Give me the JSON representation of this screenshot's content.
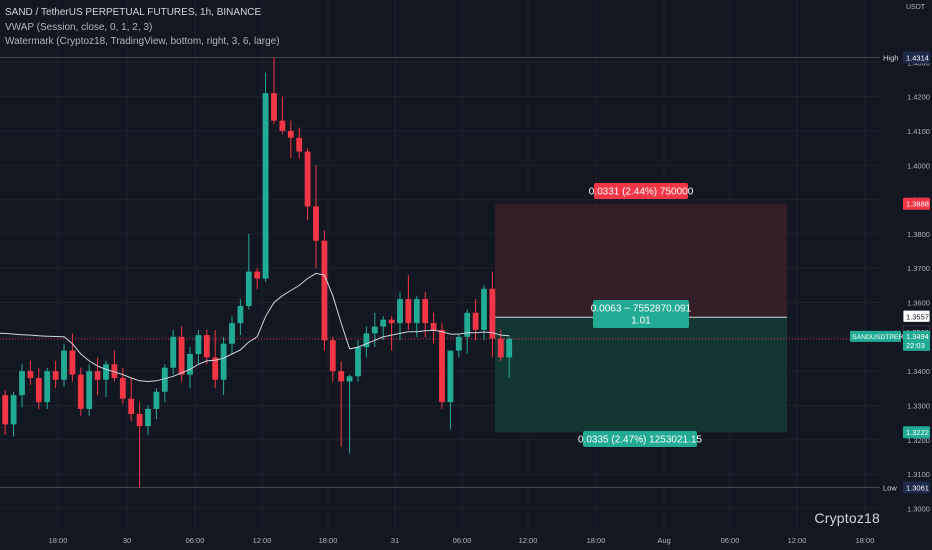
{
  "legend": {
    "title": "SAND / TetherUS PERPETUAL FUTURES, 1h, BINANCE",
    "vwap": "VWAP (Session, close, 0, 1, 2, 3)",
    "watermark_ind": "Watermark (Cryptoz18, TradingView, bottom, right, 3, 6, large)"
  },
  "watermark": "Cryptoz18",
  "colors": {
    "background": "#131722",
    "up": "#22ab94",
    "down": "#f23645",
    "vwap": "#d1d4dc",
    "grid": "#1e222d",
    "risk_zone": "#3a2029",
    "reward_zone": "#133a34"
  },
  "chart_data": {
    "type": "candlestick",
    "y_unit": "USDT",
    "ylim": [
      1.295,
      1.4365
    ],
    "y_ticks": [
      "1.4300",
      "1.4200",
      "1.4100",
      "1.4000",
      "1.3900",
      "1.3800",
      "1.3700",
      "1.3600",
      "1.3500",
      "1.3400",
      "1.3300",
      "1.3200",
      "1.3100",
      "1.3000"
    ],
    "x_ticks": [
      "18:00",
      "30",
      "06:00",
      "12:00",
      "18:00",
      "31",
      "06:00",
      "12:00",
      "18:00",
      "Aug",
      "06:00",
      "12:00",
      "18:00"
    ],
    "candles": [
      {
        "o": 1.333,
        "h": 1.3345,
        "l": 1.3215,
        "c": 1.3245
      },
      {
        "o": 1.3245,
        "h": 1.334,
        "l": 1.321,
        "c": 1.333
      },
      {
        "o": 1.333,
        "h": 1.342,
        "l": 1.3295,
        "c": 1.34
      },
      {
        "o": 1.34,
        "h": 1.343,
        "l": 1.336,
        "c": 1.338
      },
      {
        "o": 1.338,
        "h": 1.341,
        "l": 1.329,
        "c": 1.331
      },
      {
        "o": 1.331,
        "h": 1.341,
        "l": 1.329,
        "c": 1.34
      },
      {
        "o": 1.34,
        "h": 1.343,
        "l": 1.335,
        "c": 1.3375
      },
      {
        "o": 1.3375,
        "h": 1.348,
        "l": 1.3355,
        "c": 1.346
      },
      {
        "o": 1.346,
        "h": 1.351,
        "l": 1.337,
        "c": 1.339
      },
      {
        "o": 1.339,
        "h": 1.341,
        "l": 1.327,
        "c": 1.329
      },
      {
        "o": 1.329,
        "h": 1.342,
        "l": 1.327,
        "c": 1.34
      },
      {
        "o": 1.34,
        "h": 1.344,
        "l": 1.333,
        "c": 1.3375
      },
      {
        "o": 1.3375,
        "h": 1.343,
        "l": 1.3325,
        "c": 1.342
      },
      {
        "o": 1.342,
        "h": 1.346,
        "l": 1.337,
        "c": 1.338
      },
      {
        "o": 1.338,
        "h": 1.341,
        "l": 1.3305,
        "c": 1.332
      },
      {
        "o": 1.332,
        "h": 1.338,
        "l": 1.3255,
        "c": 1.3275
      },
      {
        "o": 1.3275,
        "h": 1.331,
        "l": 1.306,
        "c": 1.324
      },
      {
        "o": 1.324,
        "h": 1.33,
        "l": 1.3215,
        "c": 1.329
      },
      {
        "o": 1.329,
        "h": 1.335,
        "l": 1.326,
        "c": 1.334
      },
      {
        "o": 1.334,
        "h": 1.342,
        "l": 1.331,
        "c": 1.341
      },
      {
        "o": 1.341,
        "h": 1.352,
        "l": 1.339,
        "c": 1.35
      },
      {
        "o": 1.35,
        "h": 1.353,
        "l": 1.337,
        "c": 1.339
      },
      {
        "o": 1.339,
        "h": 1.347,
        "l": 1.335,
        "c": 1.345
      },
      {
        "o": 1.345,
        "h": 1.352,
        "l": 1.342,
        "c": 1.3505
      },
      {
        "o": 1.3505,
        "h": 1.352,
        "l": 1.342,
        "c": 1.344
      },
      {
        "o": 1.344,
        "h": 1.352,
        "l": 1.335,
        "c": 1.3375
      },
      {
        "o": 1.3375,
        "h": 1.35,
        "l": 1.333,
        "c": 1.348
      },
      {
        "o": 1.348,
        "h": 1.356,
        "l": 1.345,
        "c": 1.354
      },
      {
        "o": 1.354,
        "h": 1.361,
        "l": 1.3505,
        "c": 1.359
      },
      {
        "o": 1.359,
        "h": 1.38,
        "l": 1.358,
        "c": 1.369
      },
      {
        "o": 1.369,
        "h": 1.37,
        "l": 1.364,
        "c": 1.367
      },
      {
        "o": 1.367,
        "h": 1.427,
        "l": 1.366,
        "c": 1.421
      },
      {
        "o": 1.421,
        "h": 1.4314,
        "l": 1.412,
        "c": 1.413
      },
      {
        "o": 1.413,
        "h": 1.42,
        "l": 1.409,
        "c": 1.41
      },
      {
        "o": 1.41,
        "h": 1.413,
        "l": 1.402,
        "c": 1.408
      },
      {
        "o": 1.408,
        "h": 1.411,
        "l": 1.402,
        "c": 1.404
      },
      {
        "o": 1.404,
        "h": 1.405,
        "l": 1.384,
        "c": 1.388
      },
      {
        "o": 1.388,
        "h": 1.4,
        "l": 1.37,
        "c": 1.378
      },
      {
        "o": 1.378,
        "h": 1.381,
        "l": 1.346,
        "c": 1.349
      },
      {
        "o": 1.349,
        "h": 1.35,
        "l": 1.337,
        "c": 1.34
      },
      {
        "o": 1.34,
        "h": 1.343,
        "l": 1.318,
        "c": 1.337
      },
      {
        "o": 1.337,
        "h": 1.339,
        "l": 1.316,
        "c": 1.3385
      },
      {
        "o": 1.3385,
        "h": 1.349,
        "l": 1.337,
        "c": 1.347
      },
      {
        "o": 1.347,
        "h": 1.353,
        "l": 1.344,
        "c": 1.351
      },
      {
        "o": 1.351,
        "h": 1.357,
        "l": 1.347,
        "c": 1.353
      },
      {
        "o": 1.353,
        "h": 1.356,
        "l": 1.349,
        "c": 1.355
      },
      {
        "o": 1.355,
        "h": 1.356,
        "l": 1.346,
        "c": 1.354
      },
      {
        "o": 1.354,
        "h": 1.363,
        "l": 1.349,
        "c": 1.361
      },
      {
        "o": 1.361,
        "h": 1.368,
        "l": 1.352,
        "c": 1.354
      },
      {
        "o": 1.354,
        "h": 1.362,
        "l": 1.35,
        "c": 1.361
      },
      {
        "o": 1.361,
        "h": 1.363,
        "l": 1.35,
        "c": 1.354
      },
      {
        "o": 1.354,
        "h": 1.357,
        "l": 1.348,
        "c": 1.352
      },
      {
        "o": 1.352,
        "h": 1.354,
        "l": 1.329,
        "c": 1.331
      },
      {
        "o": 1.331,
        "h": 1.346,
        "l": 1.323,
        "c": 1.346
      },
      {
        "o": 1.346,
        "h": 1.351,
        "l": 1.344,
        "c": 1.35
      },
      {
        "o": 1.35,
        "h": 1.358,
        "l": 1.345,
        "c": 1.357
      },
      {
        "o": 1.357,
        "h": 1.361,
        "l": 1.349,
        "c": 1.352
      },
      {
        "o": 1.352,
        "h": 1.365,
        "l": 1.349,
        "c": 1.364
      },
      {
        "o": 1.364,
        "h": 1.369,
        "l": 1.344,
        "c": 1.3495
      },
      {
        "o": 1.3495,
        "h": 1.352,
        "l": 1.343,
        "c": 1.344
      },
      {
        "o": 1.344,
        "h": 1.35,
        "l": 1.338,
        "c": 1.3494
      }
    ],
    "vwap": [
      1.351,
      1.3508,
      1.3506,
      1.3505,
      1.3503,
      1.3502,
      1.3501,
      1.35,
      1.348,
      1.345,
      1.343,
      1.3415,
      1.3405,
      1.3398,
      1.339,
      1.338,
      1.3372,
      1.337,
      1.3372,
      1.3378,
      1.3385,
      1.3395,
      1.3405,
      1.342,
      1.343,
      1.3432,
      1.3438,
      1.345,
      1.3462,
      1.3485,
      1.35,
      1.356,
      1.36,
      1.362,
      1.3635,
      1.365,
      1.367,
      1.3685,
      1.368,
      1.362,
      1.354,
      1.3465,
      1.347,
      1.348,
      1.349,
      1.35,
      1.3505,
      1.351,
      1.3515,
      1.3515,
      1.3518,
      1.3519,
      1.3515,
      1.3508,
      1.3508,
      1.3512,
      1.3512,
      1.3514,
      1.3512,
      1.3505,
      1.3503
    ],
    "position": {
      "entry": 1.3557,
      "stop": 1.3888,
      "target": 1.3222,
      "stop_label": "0.0331 (2.44%) 750000",
      "mid_label_1": "0.0063 − 7552870.091",
      "mid_label_2": "1.01",
      "target_label": "0.0335 (2.47%) 1253021.15"
    },
    "price_labels": {
      "high": {
        "tag": "High",
        "value": "1.4314",
        "price": 1.4314
      },
      "low": {
        "tag": "Low",
        "value": "1.3061",
        "price": 1.3061
      },
      "stop": {
        "value": "1.3888",
        "price": 1.3888
      },
      "entry": {
        "value": "1.3557",
        "price": 1.3557
      },
      "entry_alt": {
        "value": "1.3509",
        "price": 1.3509
      },
      "current": {
        "symbol": "SANDUSDTPERP",
        "value": "1.3494",
        "countdown": "22:03",
        "price": 1.3494
      },
      "target": {
        "value": "1.3222",
        "price": 1.3222
      }
    }
  }
}
